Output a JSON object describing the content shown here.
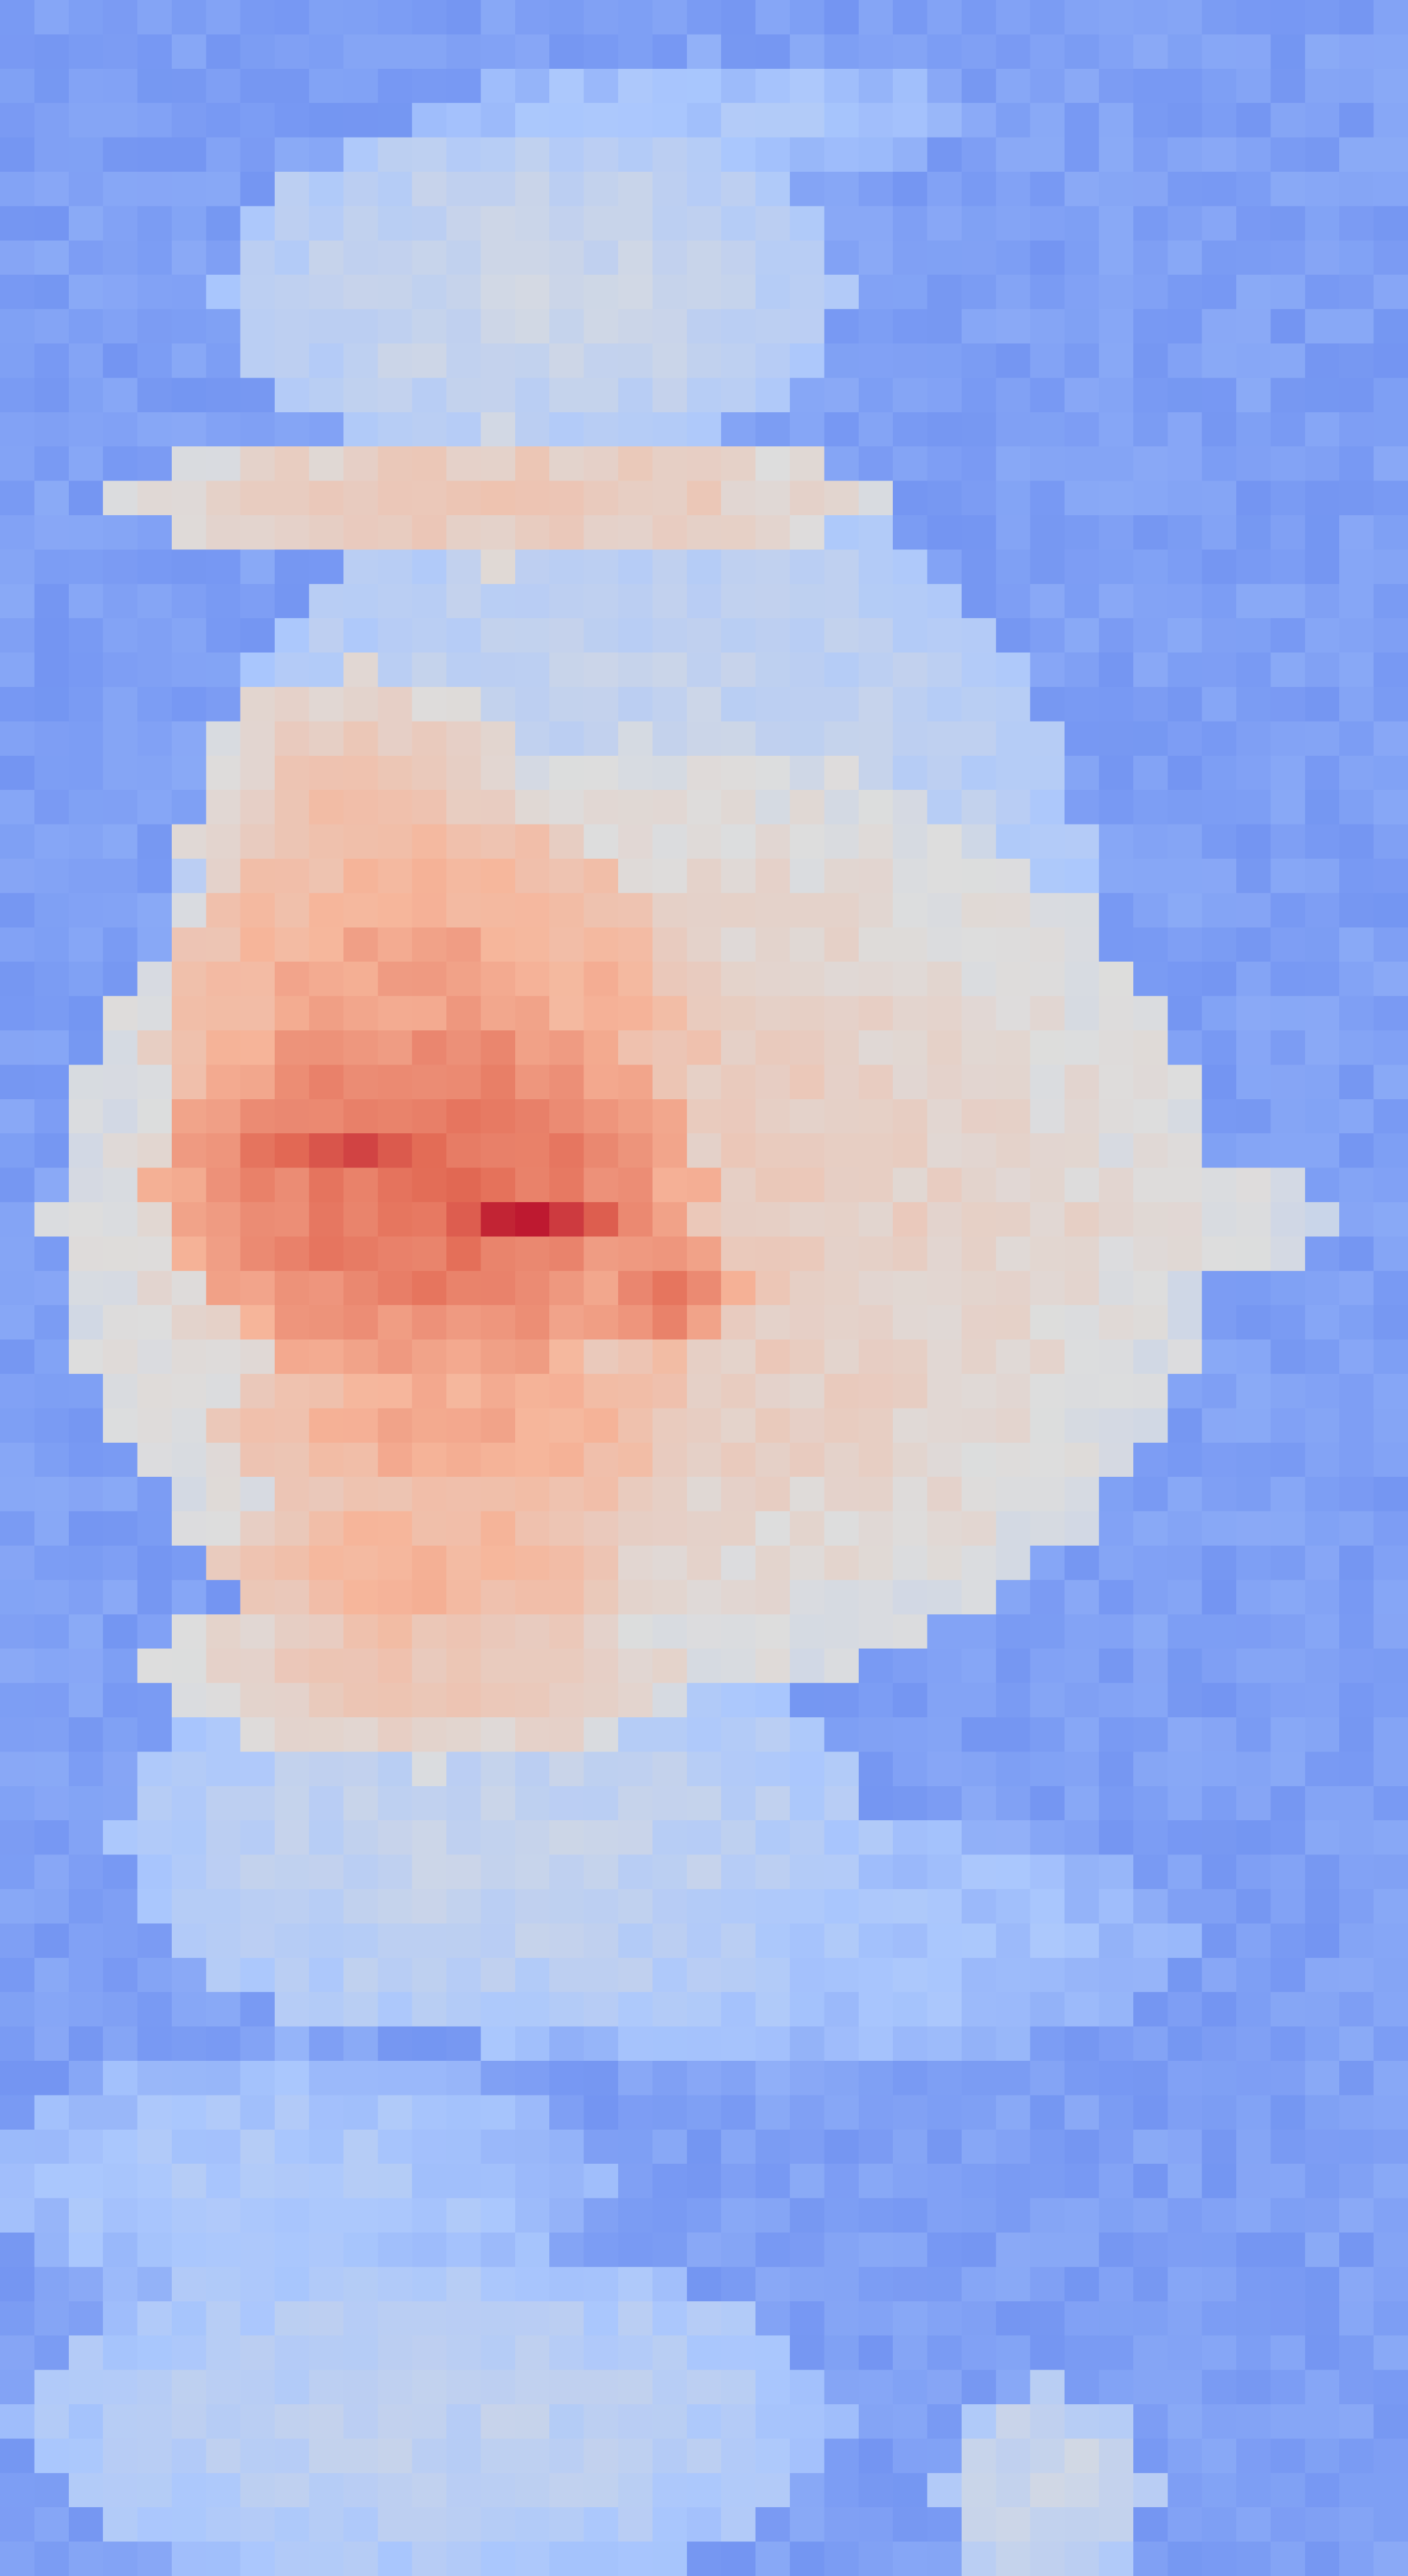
{
  "chart_data": {
    "type": "heatmap",
    "title": "",
    "xlabel": "",
    "ylabel": "",
    "columns": 41,
    "rows": 75,
    "colormap": "coolwarm",
    "value_range": [
      0,
      1
    ],
    "colorbar": false,
    "axes_visible": false,
    "colormap_stops": [
      "#3b4cc0",
      "#6b8df0",
      "#aac7fd",
      "#dddddd",
      "#f6b69b",
      "#e36b55",
      "#b40426"
    ],
    "major_features": [
      {
        "shape": "background_field",
        "rows": [
          0,
          74
        ],
        "cols": [
          0,
          40
        ],
        "value": 0.22
      },
      {
        "shape": "ellipse",
        "center": [
          8,
          15
        ],
        "radius": [
          5,
          9
        ],
        "value": 0.44
      },
      {
        "shape": "ellipse",
        "center": [
          14,
          14
        ],
        "radius": [
          2,
          11
        ],
        "value": 0.6
      },
      {
        "shape": "ellipse",
        "center": [
          30,
          18
        ],
        "radius": [
          18,
          14
        ],
        "value": 0.44
      },
      {
        "shape": "ellipse",
        "center": [
          24,
          10
        ],
        "radius": [
          5,
          5
        ],
        "value": 0.62
      },
      {
        "shape": "ellipse",
        "center": [
          35,
          18
        ],
        "radius": [
          14,
          17
        ],
        "value": 0.58
      },
      {
        "shape": "ellipse",
        "center": [
          30,
          12
        ],
        "radius": [
          7,
          8
        ],
        "value": 0.72
      },
      {
        "shape": "ellipse",
        "center": [
          35,
          26
        ],
        "radius": [
          3,
          12
        ],
        "value": 0.56
      },
      {
        "shape": "ellipse",
        "center": [
          34,
          12
        ],
        "radius": [
          6,
          8
        ],
        "value": 0.82
      },
      {
        "shape": "ellipse",
        "center": [
          35,
          15
        ],
        "radius": [
          1,
          3
        ],
        "value": 0.96
      },
      {
        "shape": "ellipse",
        "center": [
          33,
          10
        ],
        "radius": [
          1,
          4
        ],
        "value": 0.88
      },
      {
        "shape": "ellipse",
        "center": [
          37,
          19
        ],
        "radius": [
          2,
          2
        ],
        "value": 0.8
      },
      {
        "shape": "ellipse",
        "center": [
          41,
          13
        ],
        "radius": [
          3,
          7
        ],
        "value": 0.7
      },
      {
        "shape": "ellipse",
        "center": [
          45,
          12
        ],
        "radius": [
          3,
          6
        ],
        "value": 0.67
      },
      {
        "shape": "ellipse",
        "center": [
          48,
          12
        ],
        "radius": [
          3,
          8
        ],
        "value": 0.6
      },
      {
        "shape": "ellipse",
        "center": [
          53,
          14
        ],
        "radius": [
          6,
          11
        ],
        "value": 0.42
      },
      {
        "shape": "ellipse",
        "center": [
          56,
          22
        ],
        "radius": [
          4,
          12
        ],
        "value": 0.34
      },
      {
        "shape": "ellipse",
        "center": [
          3,
          20
        ],
        "radius": [
          2,
          8
        ],
        "value": 0.34
      },
      {
        "shape": "ellipse",
        "center": [
          54,
          32
        ],
        "radius": [
          6,
          10
        ],
        "value": 0.12
      },
      {
        "shape": "ellipse",
        "center": [
          63,
          8
        ],
        "radius": [
          4,
          9
        ],
        "value": 0.35
      },
      {
        "shape": "ellipse",
        "center": [
          70,
          12
        ],
        "radius": [
          5,
          12
        ],
        "value": 0.4
      },
      {
        "shape": "ellipse",
        "center": [
          72,
          30
        ],
        "radius": [
          3,
          3
        ],
        "value": 0.45
      },
      {
        "shape": "ellipse",
        "center": [
          4,
          37
        ],
        "radius": [
          4,
          4
        ],
        "value": 0.15
      }
    ]
  }
}
